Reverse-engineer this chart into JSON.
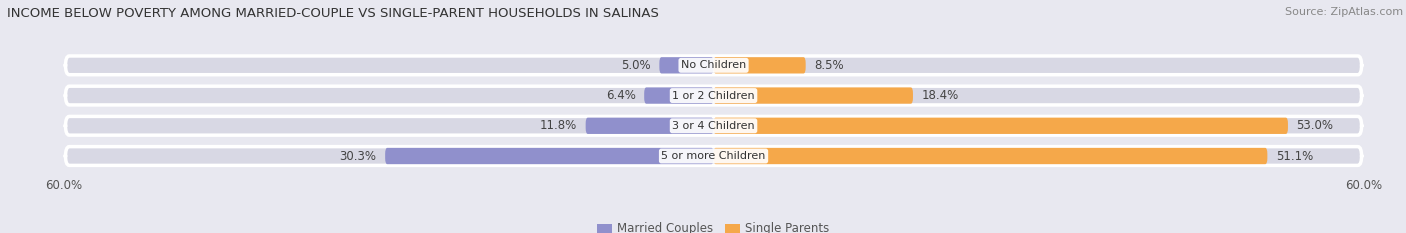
{
  "title": "INCOME BELOW POVERTY AMONG MARRIED-COUPLE VS SINGLE-PARENT HOUSEHOLDS IN SALINAS",
  "source": "Source: ZipAtlas.com",
  "categories": [
    "No Children",
    "1 or 2 Children",
    "3 or 4 Children",
    "5 or more Children"
  ],
  "married_values": [
    5.0,
    6.4,
    11.8,
    30.3
  ],
  "single_values": [
    8.5,
    18.4,
    53.0,
    51.1
  ],
  "married_color": "#9090cc",
  "single_color": "#f5a84a",
  "bar_height": 0.62,
  "xlim": 60.0,
  "bg_color": "#e8e8f0",
  "row_bg_color": "#d8d8e4",
  "legend_married": "Married Couples",
  "legend_single": "Single Parents",
  "title_fontsize": 9.5,
  "label_fontsize": 8.5,
  "axis_label_fontsize": 8.5,
  "source_fontsize": 8
}
